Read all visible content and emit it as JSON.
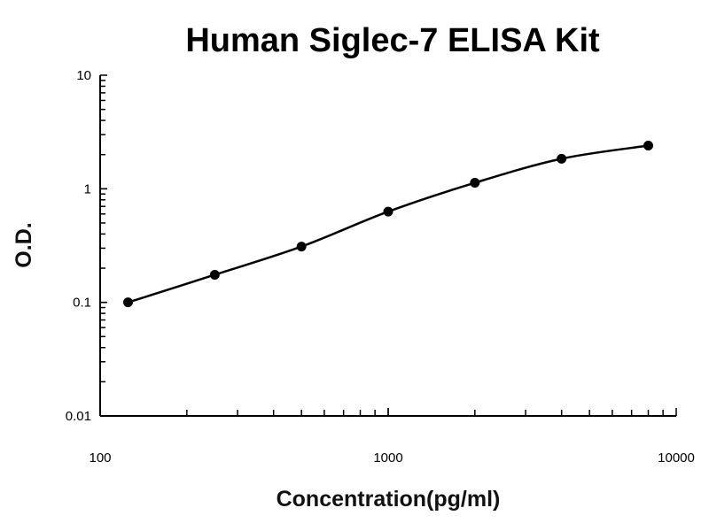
{
  "chart_data": {
    "type": "line",
    "title": "Human Siglec-7 ELISA Kit",
    "xlabel": "Concentration(pg/ml)",
    "ylabel": "O.D.",
    "x_scale": "log",
    "y_scale": "log",
    "xlim": [
      100,
      10000
    ],
    "ylim": [
      0.01,
      10
    ],
    "x_tick_labels": [
      "100",
      "1000",
      "10000"
    ],
    "y_tick_labels": [
      "0.01",
      "0.1",
      "1",
      "10"
    ],
    "grid": false,
    "series": [
      {
        "x": [
          125,
          250,
          500,
          1000,
          2000,
          4000,
          8000
        ],
        "y": [
          0.1,
          0.175,
          0.31,
          0.63,
          1.13,
          1.84,
          2.4
        ],
        "color": "#000000",
        "marker": "circle",
        "smooth": true
      }
    ]
  }
}
